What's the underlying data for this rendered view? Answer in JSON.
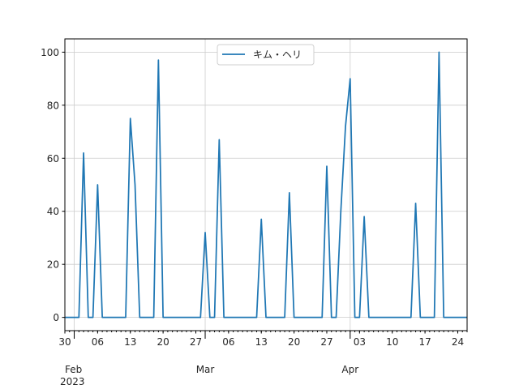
{
  "chart_data": {
    "type": "line",
    "series": [
      {
        "name": "キム・ヘリ",
        "color": "#1f77b4",
        "points": [
          [
            "2023-01-30",
            0
          ],
          [
            "2023-01-31",
            0
          ],
          [
            "2023-02-01",
            0
          ],
          [
            "2023-02-02",
            0
          ],
          [
            "2023-02-03",
            62
          ],
          [
            "2023-02-04",
            0
          ],
          [
            "2023-02-05",
            0
          ],
          [
            "2023-02-06",
            50
          ],
          [
            "2023-02-07",
            0
          ],
          [
            "2023-02-08",
            0
          ],
          [
            "2023-02-09",
            0
          ],
          [
            "2023-02-10",
            0
          ],
          [
            "2023-02-11",
            0
          ],
          [
            "2023-02-12",
            0
          ],
          [
            "2023-02-13",
            75
          ],
          [
            "2023-02-14",
            50
          ],
          [
            "2023-02-15",
            0
          ],
          [
            "2023-02-16",
            0
          ],
          [
            "2023-02-17",
            0
          ],
          [
            "2023-02-18",
            0
          ],
          [
            "2023-02-19",
            97
          ],
          [
            "2023-02-20",
            0
          ],
          [
            "2023-02-21",
            0
          ],
          [
            "2023-02-22",
            0
          ],
          [
            "2023-02-23",
            0
          ],
          [
            "2023-02-24",
            0
          ],
          [
            "2023-02-25",
            0
          ],
          [
            "2023-02-26",
            0
          ],
          [
            "2023-02-27",
            0
          ],
          [
            "2023-02-28",
            0
          ],
          [
            "2023-03-01",
            32
          ],
          [
            "2023-03-02",
            0
          ],
          [
            "2023-03-03",
            0
          ],
          [
            "2023-03-04",
            67
          ],
          [
            "2023-03-05",
            0
          ],
          [
            "2023-03-06",
            0
          ],
          [
            "2023-03-07",
            0
          ],
          [
            "2023-03-08",
            0
          ],
          [
            "2023-03-09",
            0
          ],
          [
            "2023-03-10",
            0
          ],
          [
            "2023-03-11",
            0
          ],
          [
            "2023-03-12",
            0
          ],
          [
            "2023-03-13",
            37
          ],
          [
            "2023-03-14",
            0
          ],
          [
            "2023-03-15",
            0
          ],
          [
            "2023-03-16",
            0
          ],
          [
            "2023-03-17",
            0
          ],
          [
            "2023-03-18",
            0
          ],
          [
            "2023-03-19",
            47
          ],
          [
            "2023-03-20",
            0
          ],
          [
            "2023-03-21",
            0
          ],
          [
            "2023-03-22",
            0
          ],
          [
            "2023-03-23",
            0
          ],
          [
            "2023-03-24",
            0
          ],
          [
            "2023-03-25",
            0
          ],
          [
            "2023-03-26",
            0
          ],
          [
            "2023-03-27",
            57
          ],
          [
            "2023-03-28",
            0
          ],
          [
            "2023-03-29",
            0
          ],
          [
            "2023-03-30",
            40
          ],
          [
            "2023-03-31",
            72
          ],
          [
            "2023-04-01",
            90
          ],
          [
            "2023-04-02",
            0
          ],
          [
            "2023-04-03",
            0
          ],
          [
            "2023-04-04",
            38
          ],
          [
            "2023-04-05",
            0
          ],
          [
            "2023-04-06",
            0
          ],
          [
            "2023-04-07",
            0
          ],
          [
            "2023-04-08",
            0
          ],
          [
            "2023-04-09",
            0
          ],
          [
            "2023-04-10",
            0
          ],
          [
            "2023-04-11",
            0
          ],
          [
            "2023-04-12",
            0
          ],
          [
            "2023-04-13",
            0
          ],
          [
            "2023-04-14",
            0
          ],
          [
            "2023-04-15",
            43
          ],
          [
            "2023-04-16",
            0
          ],
          [
            "2023-04-17",
            0
          ],
          [
            "2023-04-18",
            0
          ],
          [
            "2023-04-19",
            0
          ],
          [
            "2023-04-20",
            100
          ],
          [
            "2023-04-21",
            0
          ],
          [
            "2023-04-22",
            0
          ],
          [
            "2023-04-23",
            0
          ],
          [
            "2023-04-24",
            0
          ],
          [
            "2023-04-25",
            0
          ],
          [
            "2023-04-26",
            0
          ]
        ]
      }
    ],
    "xlim": [
      "2023-01-30",
      "2023-04-26"
    ],
    "ylim": [
      -5,
      105
    ],
    "y_ticks": [
      0,
      20,
      40,
      60,
      80,
      100
    ],
    "x_major_ticks": [
      {
        "date": "2023-01-30",
        "label": "30"
      },
      {
        "date": "2023-02-06",
        "label": "06"
      },
      {
        "date": "2023-02-13",
        "label": "13"
      },
      {
        "date": "2023-02-20",
        "label": "20"
      },
      {
        "date": "2023-02-27",
        "label": "27"
      },
      {
        "date": "2023-03-06",
        "label": "06"
      },
      {
        "date": "2023-03-13",
        "label": "13"
      },
      {
        "date": "2023-03-20",
        "label": "20"
      },
      {
        "date": "2023-03-27",
        "label": "27"
      },
      {
        "date": "2023-04-03",
        "label": "03"
      },
      {
        "date": "2023-04-10",
        "label": "10"
      },
      {
        "date": "2023-04-17",
        "label": "17"
      },
      {
        "date": "2023-04-24",
        "label": "24"
      }
    ],
    "x_month_ticks": [
      {
        "date": "2023-02-01",
        "label": "Feb"
      },
      {
        "date": "2023-03-01",
        "label": "Mar"
      },
      {
        "date": "2023-04-01",
        "label": "Apr"
      }
    ],
    "x_year_label": {
      "date": "2023-01-30",
      "label": "2023"
    },
    "grid": true,
    "legend_position": "top-center"
  }
}
